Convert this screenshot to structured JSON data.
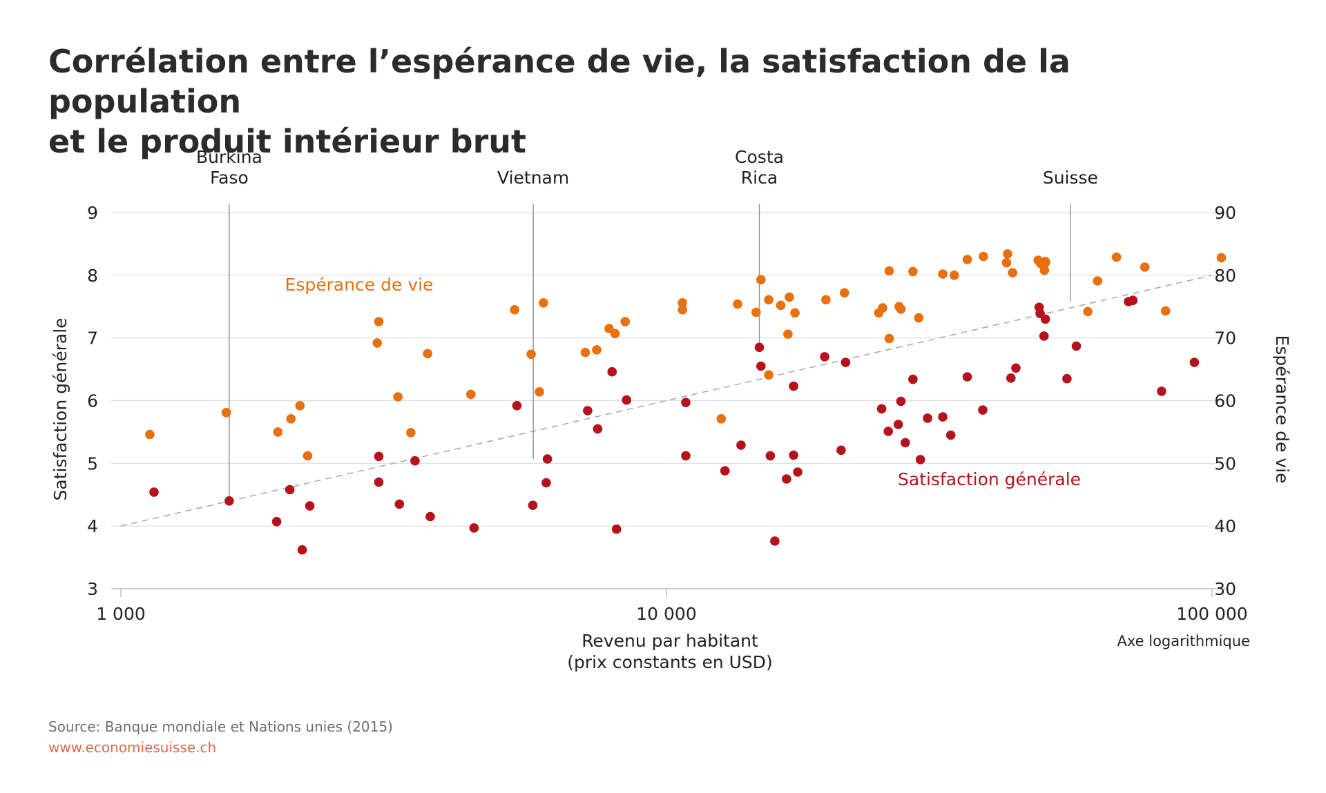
{
  "header": {
    "title_line1": "Corrélation entre l’espérance de vie, la satisfaction de la population",
    "title_line2": "et le produit intérieur brut"
  },
  "footer": {
    "source": "Source: Banque mondiale et Nations unies (2015)",
    "url": "www.economiesuisse.ch"
  },
  "colors": {
    "life_expectancy": "#e8700e",
    "satisfaction": "#b5121b",
    "grid": "#dcdcdc",
    "trend": "#aaaaaa",
    "text": "#222222"
  },
  "chart_data": {
    "type": "scatter",
    "xscale": "log",
    "xlim": [
      1000,
      100000
    ],
    "ylim_left": [
      3,
      9
    ],
    "ylim_right": [
      30,
      90
    ],
    "xticks": [
      {
        "value": 1000,
        "label": "1 000"
      },
      {
        "value": 10000,
        "label": "10 000"
      },
      {
        "value": 100000,
        "label": "100 000"
      }
    ],
    "yticks_left": [
      {
        "value": 3,
        "label": "3"
      },
      {
        "value": 4,
        "label": "4"
      },
      {
        "value": 5,
        "label": "5"
      },
      {
        "value": 6,
        "label": "6"
      },
      {
        "value": 7,
        "label": "7"
      },
      {
        "value": 8,
        "label": "8"
      },
      {
        "value": 9,
        "label": "9"
      }
    ],
    "yticks_right": [
      {
        "value": 30,
        "label": "30"
      },
      {
        "value": 40,
        "label": "40"
      },
      {
        "value": 50,
        "label": "50"
      },
      {
        "value": 60,
        "label": "60"
      },
      {
        "value": 70,
        "label": "70"
      },
      {
        "value": 80,
        "label": "80"
      },
      {
        "value": 90,
        "label": "90"
      }
    ],
    "xlabel_line1": "Revenu par habitant",
    "xlabel_line2": "(prix constants en USD)",
    "xaxis_note": "Axe logarithmique",
    "ylabel_left": "Satisfaction générale",
    "ylabel_right": "Espérance de vie",
    "grid": true,
    "trendline": {
      "x": [
        1000,
        100000
      ],
      "y": [
        4,
        8
      ]
    },
    "annotations": [
      {
        "lines": [
          "Burkina",
          "Faso"
        ],
        "x": 1580,
        "y_left": 4.4
      },
      {
        "lines": [
          "Vietnam"
        ],
        "x": 5700,
        "y_left": 5.07
      },
      {
        "lines": [
          "Costa",
          "Rica"
        ],
        "x": 14800,
        "y_left": 6.85
      },
      {
        "lines": [
          "Suisse"
        ],
        "x": 55000,
        "y_left": 7.58
      }
    ],
    "series": [
      {
        "name": "Espérance de vie",
        "axis": "right",
        "color": "#e8700e",
        "points": [
          [
            1130,
            54.6
          ],
          [
            1560,
            58.1
          ],
          [
            1940,
            55.0
          ],
          [
            2050,
            57.1
          ],
          [
            2130,
            59.2
          ],
          [
            2200,
            51.2
          ],
          [
            2970,
            72.6
          ],
          [
            2950,
            69.2
          ],
          [
            3220,
            60.6
          ],
          [
            3400,
            54.9
          ],
          [
            3650,
            67.5
          ],
          [
            4380,
            61.0
          ],
          [
            5270,
            74.5
          ],
          [
            5650,
            67.4
          ],
          [
            5850,
            61.4
          ],
          [
            5950,
            75.6
          ],
          [
            7100,
            67.7
          ],
          [
            7450,
            68.1
          ],
          [
            7850,
            71.5
          ],
          [
            8050,
            70.7
          ],
          [
            8400,
            72.6
          ],
          [
            10700,
            75.6
          ],
          [
            10700,
            74.5
          ],
          [
            12600,
            57.1
          ],
          [
            13500,
            75.4
          ],
          [
            14600,
            74.1
          ],
          [
            14900,
            79.3
          ],
          [
            15400,
            76.1
          ],
          [
            15400,
            64.1
          ],
          [
            16200,
            75.2
          ],
          [
            16800,
            76.5
          ],
          [
            16700,
            70.6
          ],
          [
            17200,
            74.0
          ],
          [
            19600,
            76.1
          ],
          [
            21200,
            77.2
          ],
          [
            24500,
            74.0
          ],
          [
            24900,
            74.8
          ],
          [
            25600,
            80.7
          ],
          [
            25600,
            69.9
          ],
          [
            26700,
            75.0
          ],
          [
            26900,
            74.6
          ],
          [
            28300,
            80.6
          ],
          [
            29000,
            73.2
          ],
          [
            32100,
            80.2
          ],
          [
            33700,
            80.0
          ],
          [
            35600,
            82.5
          ],
          [
            38100,
            83.0
          ],
          [
            42000,
            82.0
          ],
          [
            42200,
            83.4
          ],
          [
            43100,
            80.4
          ],
          [
            48000,
            82.4
          ],
          [
            48500,
            81.9
          ],
          [
            49500,
            82.2
          ],
          [
            49300,
            80.8
          ],
          [
            49500,
            82.0
          ],
          [
            59200,
            74.2
          ],
          [
            61700,
            79.1
          ],
          [
            66800,
            82.9
          ],
          [
            75300,
            81.3
          ],
          [
            82200,
            74.3
          ],
          [
            104000,
            82.8
          ]
        ]
      },
      {
        "name": "Satisfaction générale",
        "axis": "left",
        "color": "#b5121b",
        "points": [
          [
            1150,
            4.54
          ],
          [
            1580,
            4.4
          ],
          [
            1930,
            4.07
          ],
          [
            2040,
            4.58
          ],
          [
            2150,
            3.62
          ],
          [
            2220,
            4.32
          ],
          [
            2970,
            5.11
          ],
          [
            2970,
            4.7
          ],
          [
            3240,
            4.35
          ],
          [
            3460,
            5.04
          ],
          [
            3690,
            4.15
          ],
          [
            4440,
            3.97
          ],
          [
            5320,
            5.92
          ],
          [
            5690,
            4.33
          ],
          [
            6020,
            4.69
          ],
          [
            6050,
            5.07
          ],
          [
            7170,
            5.84
          ],
          [
            7480,
            5.55
          ],
          [
            7950,
            6.46
          ],
          [
            8100,
            3.95
          ],
          [
            8450,
            6.01
          ],
          [
            10850,
            5.97
          ],
          [
            10850,
            5.12
          ],
          [
            12800,
            4.88
          ],
          [
            13700,
            5.29
          ],
          [
            14900,
            6.55
          ],
          [
            14800,
            6.85
          ],
          [
            15500,
            5.12
          ],
          [
            15800,
            3.76
          ],
          [
            16600,
            4.75
          ],
          [
            17100,
            6.23
          ],
          [
            17100,
            5.13
          ],
          [
            17400,
            4.86
          ],
          [
            19500,
            6.7
          ],
          [
            20900,
            5.21
          ],
          [
            21300,
            6.61
          ],
          [
            24800,
            5.87
          ],
          [
            25500,
            5.51
          ],
          [
            26600,
            5.62
          ],
          [
            26900,
            5.99
          ],
          [
            27400,
            5.33
          ],
          [
            28300,
            6.34
          ],
          [
            29200,
            5.06
          ],
          [
            30100,
            5.72
          ],
          [
            32100,
            5.74
          ],
          [
            33200,
            5.45
          ],
          [
            35600,
            6.38
          ],
          [
            38000,
            5.85
          ],
          [
            42800,
            6.36
          ],
          [
            43700,
            6.52
          ],
          [
            48200,
            7.49
          ],
          [
            48400,
            7.39
          ],
          [
            49200,
            7.03
          ],
          [
            49500,
            7.3
          ],
          [
            54200,
            6.35
          ],
          [
            56400,
            6.87
          ],
          [
            70300,
            7.58
          ],
          [
            71600,
            7.6
          ],
          [
            80800,
            6.15
          ],
          [
            92800,
            6.61
          ]
        ]
      }
    ]
  }
}
